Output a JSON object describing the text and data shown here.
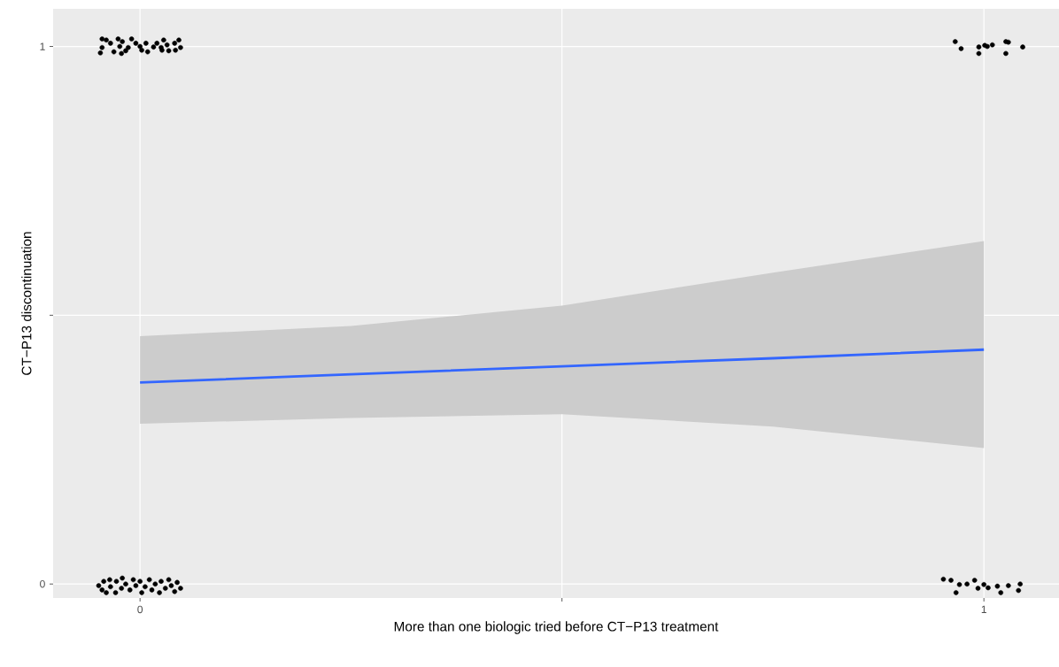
{
  "chart_data": {
    "type": "scatter",
    "xlabel": "More than one biologic tried before CT−P13 treatment",
    "ylabel": "CT−P13 discontinuation",
    "xlim": [
      -0.103,
      1.089
    ],
    "ylim": [
      -0.026,
      1.07
    ],
    "xticks": [
      0,
      {
        "value": 0.5,
        "label": null
      },
      1
    ],
    "yticks": [
      0,
      {
        "value": 0.5,
        "label": null
      },
      1
    ],
    "grid": true,
    "series": [
      {
        "color": "#000000",
        "x": [
          -0.045,
          -0.04,
          -0.045,
          -0.047,
          -0.035,
          -0.031,
          -0.026,
          -0.024,
          -0.021,
          -0.022,
          -0.017,
          -0.014,
          -0.01,
          -0.005,
          0.0,
          0.002,
          0.007,
          0.009,
          0.016,
          0.02,
          0.025,
          0.028,
          0.026,
          0.032,
          0.034,
          0.041,
          0.042,
          0.048,
          0.046,
          -0.049,
          -0.043,
          -0.045,
          -0.036,
          -0.035,
          -0.029,
          -0.028,
          -0.022,
          -0.021,
          -0.017,
          -0.012,
          -0.008,
          -0.005,
          0.0,
          0.002,
          0.006,
          0.011,
          0.014,
          0.018,
          0.023,
          0.025,
          0.03,
          0.034,
          0.037,
          0.041,
          0.044,
          0.048,
          -0.04,
          0.966,
          0.973,
          0.994,
          0.994,
          1.001,
          1.004,
          1.01,
          1.026,
          1.029,
          1.026,
          1.046,
          0.952,
          0.961,
          0.971,
          0.967,
          0.98,
          0.989,
          0.993,
          1.0,
          1.005,
          1.016,
          1.02,
          1.029,
          1.043,
          1.041
        ],
        "values": [
          1.014,
          1.012,
          0.998,
          0.988,
          1.006,
          0.99,
          1.014,
          1.0,
          1.009,
          0.987,
          0.992,
          0.998,
          1.014,
          1.006,
          1.0,
          0.993,
          1.006,
          0.99,
          0.999,
          1.006,
          0.998,
          1.012,
          0.993,
          1.003,
          0.992,
          1.006,
          0.993,
          0.998,
          1.012,
          -0.003,
          0.005,
          -0.011,
          0.008,
          -0.005,
          -0.016,
          0.005,
          -0.008,
          0.011,
          0.0,
          -0.011,
          0.008,
          -0.003,
          0.005,
          -0.016,
          -0.005,
          0.008,
          -0.011,
          0.0,
          -0.016,
          0.005,
          -0.008,
          0.008,
          -0.003,
          -0.014,
          0.003,
          -0.008,
          -0.016,
          1.009,
          0.996,
          0.999,
          0.987,
          1.002,
          1.0,
          1.003,
          1.009,
          1.008,
          0.987,
          0.999,
          0.009,
          0.007,
          -0.001,
          -0.016,
          0.0,
          0.007,
          -0.008,
          -0.001,
          -0.007,
          -0.004,
          -0.016,
          -0.003,
          0.0,
          -0.012
        ]
      },
      {
        "type": "line",
        "color": "#3366ff",
        "x": [
          0,
          0.25,
          0.5,
          0.75,
          1
        ],
        "values": [
          0.375,
          0.39,
          0.405,
          0.42,
          0.436
        ],
        "lower": [
          0.298,
          0.309,
          0.316,
          0.293,
          0.253
        ],
        "upper": [
          0.461,
          0.48,
          0.518,
          0.579,
          0.638
        ]
      }
    ]
  }
}
